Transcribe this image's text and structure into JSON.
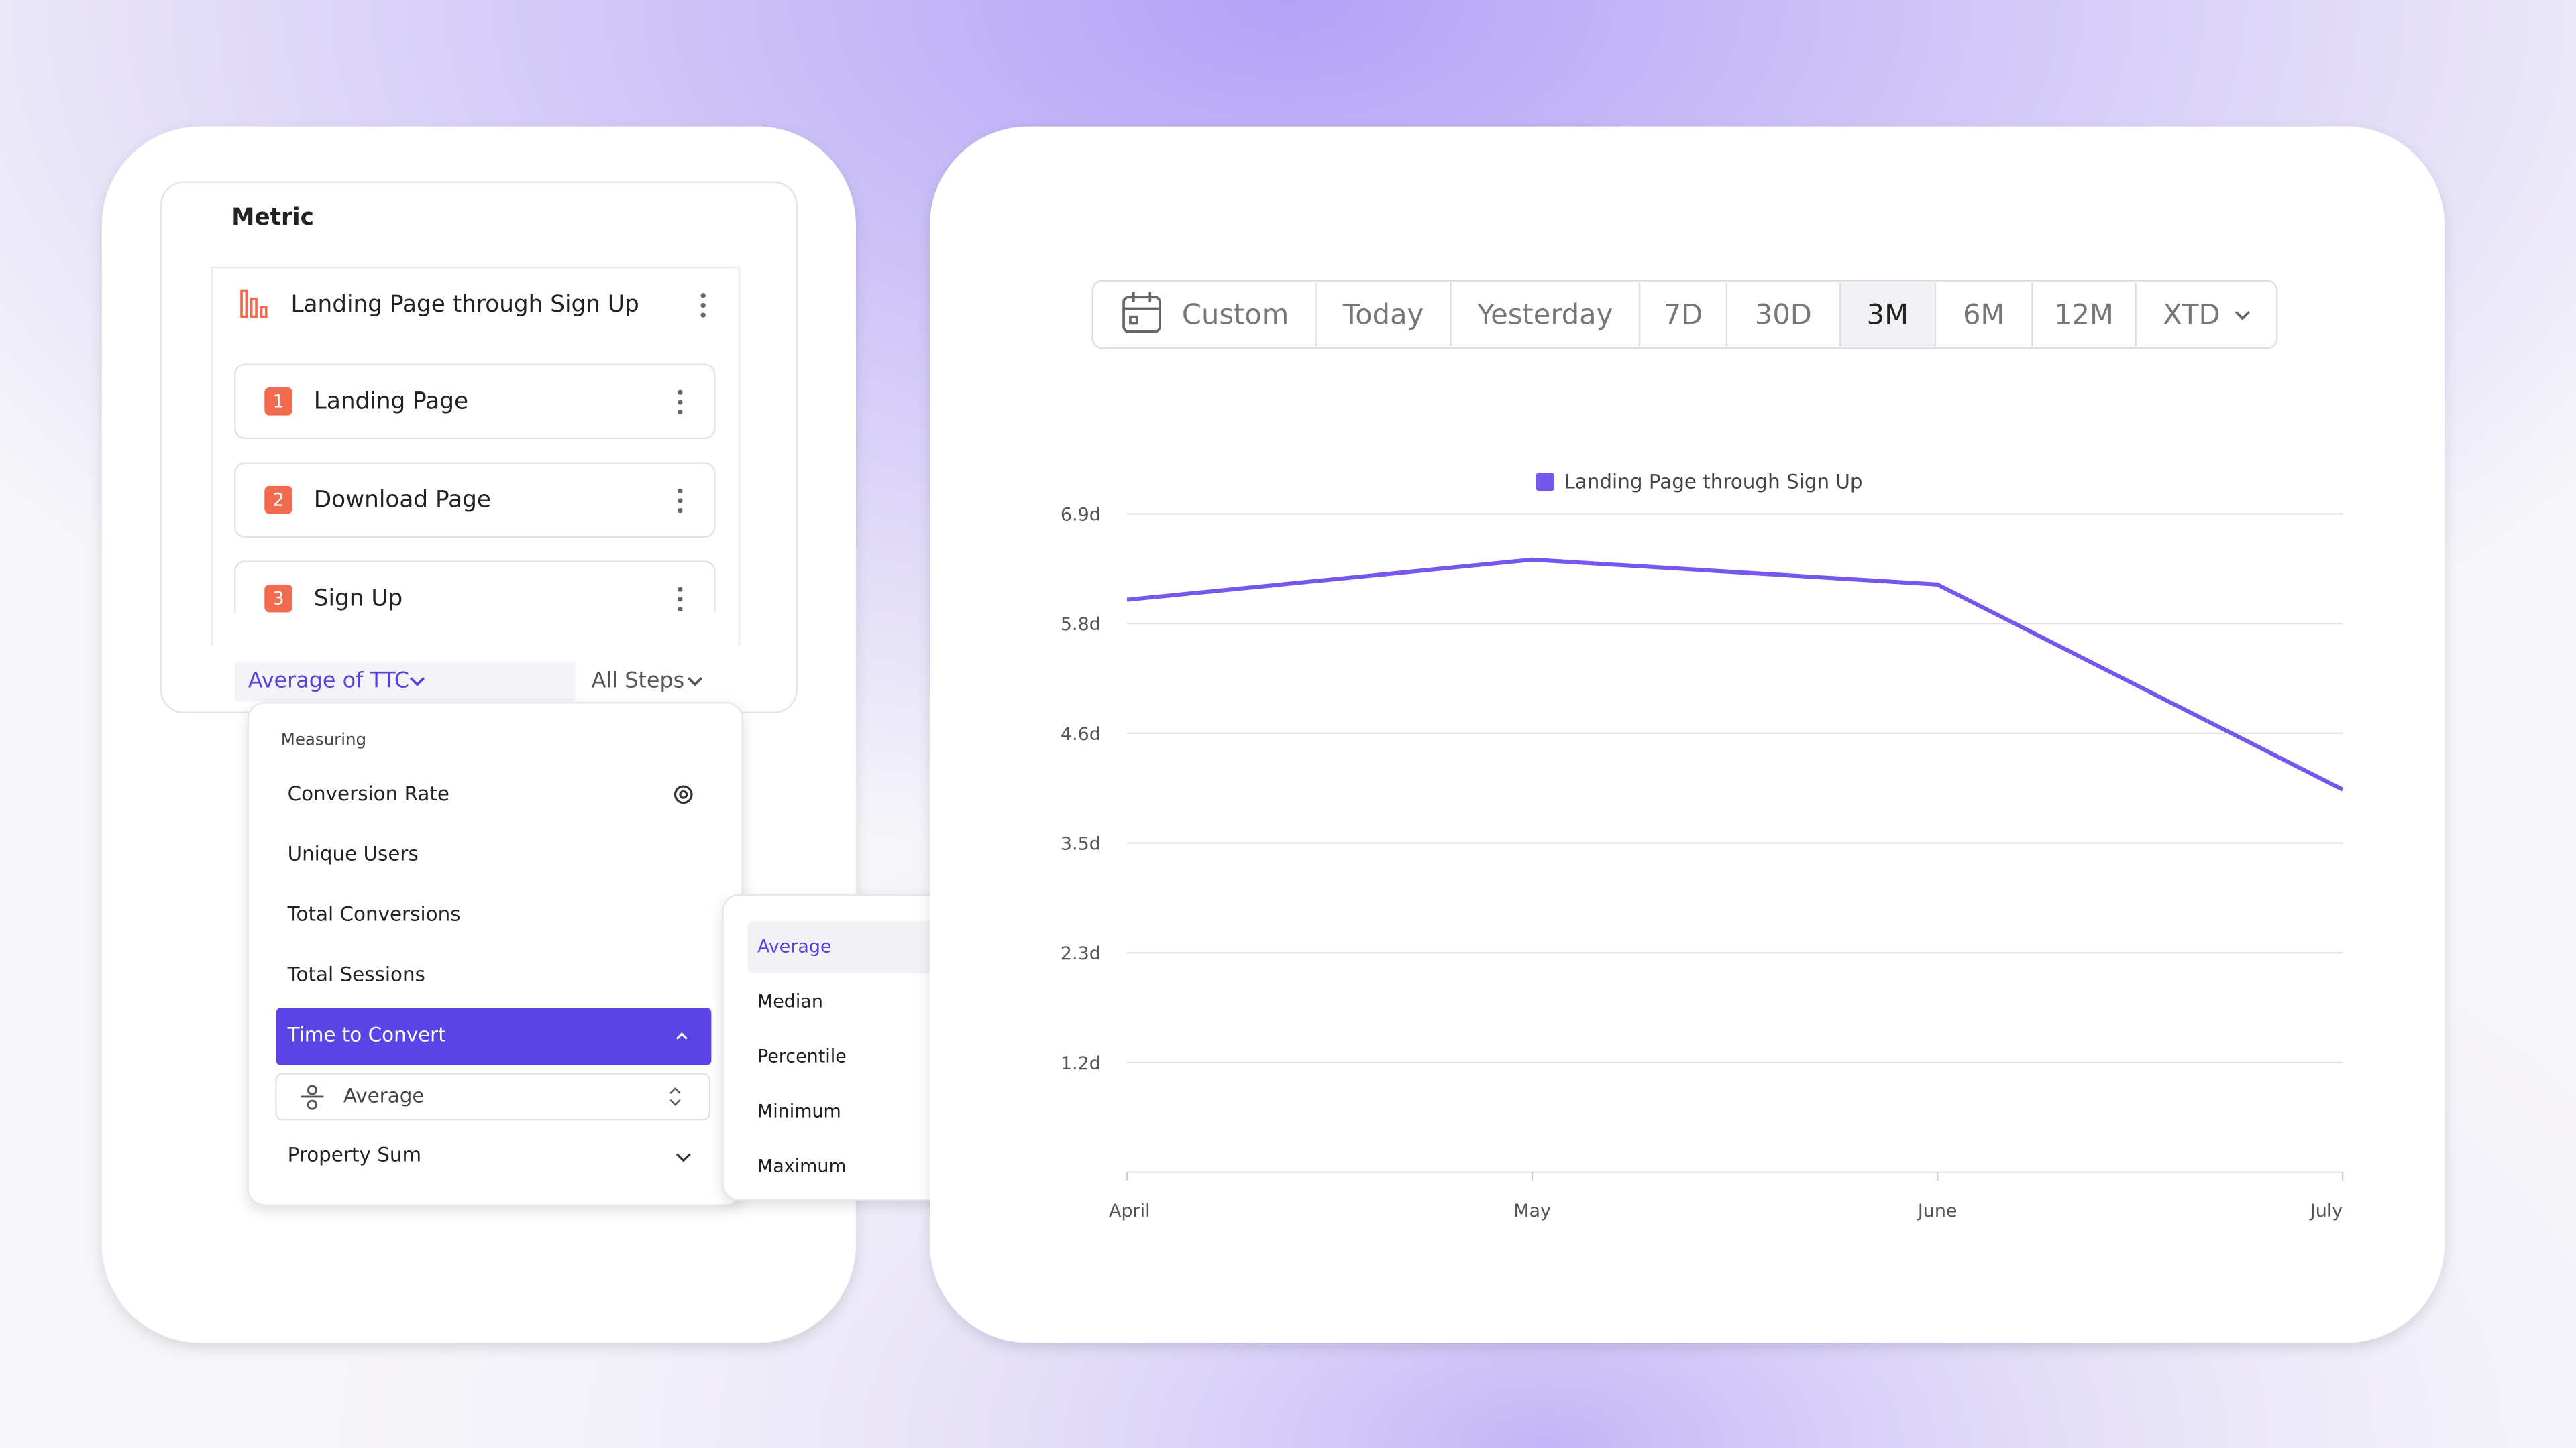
{
  "metric_panel": {
    "heading": "Metric",
    "funnel_title": "Landing Page through Sign Up",
    "steps": [
      {
        "number": "1",
        "label": "Landing Page"
      },
      {
        "number": "2",
        "label": "Download Page"
      },
      {
        "number": "3",
        "label": "Sign Up"
      }
    ],
    "measure_button": "Average of TTC",
    "steps_button": "All Steps"
  },
  "measuring_menu": {
    "heading": "Measuring",
    "items": [
      "Conversion Rate",
      "Unique Users",
      "Total Conversions",
      "Total Sessions",
      "Time to Convert"
    ],
    "aggregation": "Average",
    "last_item": "Property Sum"
  },
  "aggregation_menu": {
    "items": [
      "Average",
      "Median",
      "Percentile",
      "Minimum",
      "Maximum"
    ]
  },
  "date_range": {
    "options": [
      "Custom",
      "Today",
      "Yesterday",
      "7D",
      "30D",
      "3M",
      "6M",
      "12M",
      "XTD"
    ]
  },
  "chart_data": {
    "type": "line",
    "categories": [
      "April",
      "May",
      "June",
      "July"
    ],
    "series": [
      {
        "name": "Landing Page through Sign Up",
        "color": "#7657ee",
        "values": [
          6.0,
          6.42,
          6.16,
          4.01
        ]
      }
    ],
    "ylim": [
      0,
      6.9
    ],
    "yticks": [
      {
        "value": 1.15,
        "label": "1.2d"
      },
      {
        "value": 2.3,
        "label": "2.3d"
      },
      {
        "value": 3.45,
        "label": "3.5d"
      },
      {
        "value": 4.6,
        "label": "4.6d"
      },
      {
        "value": 5.75,
        "label": "5.8d"
      },
      {
        "value": 6.9,
        "label": "6.9d"
      }
    ],
    "grid": true
  }
}
